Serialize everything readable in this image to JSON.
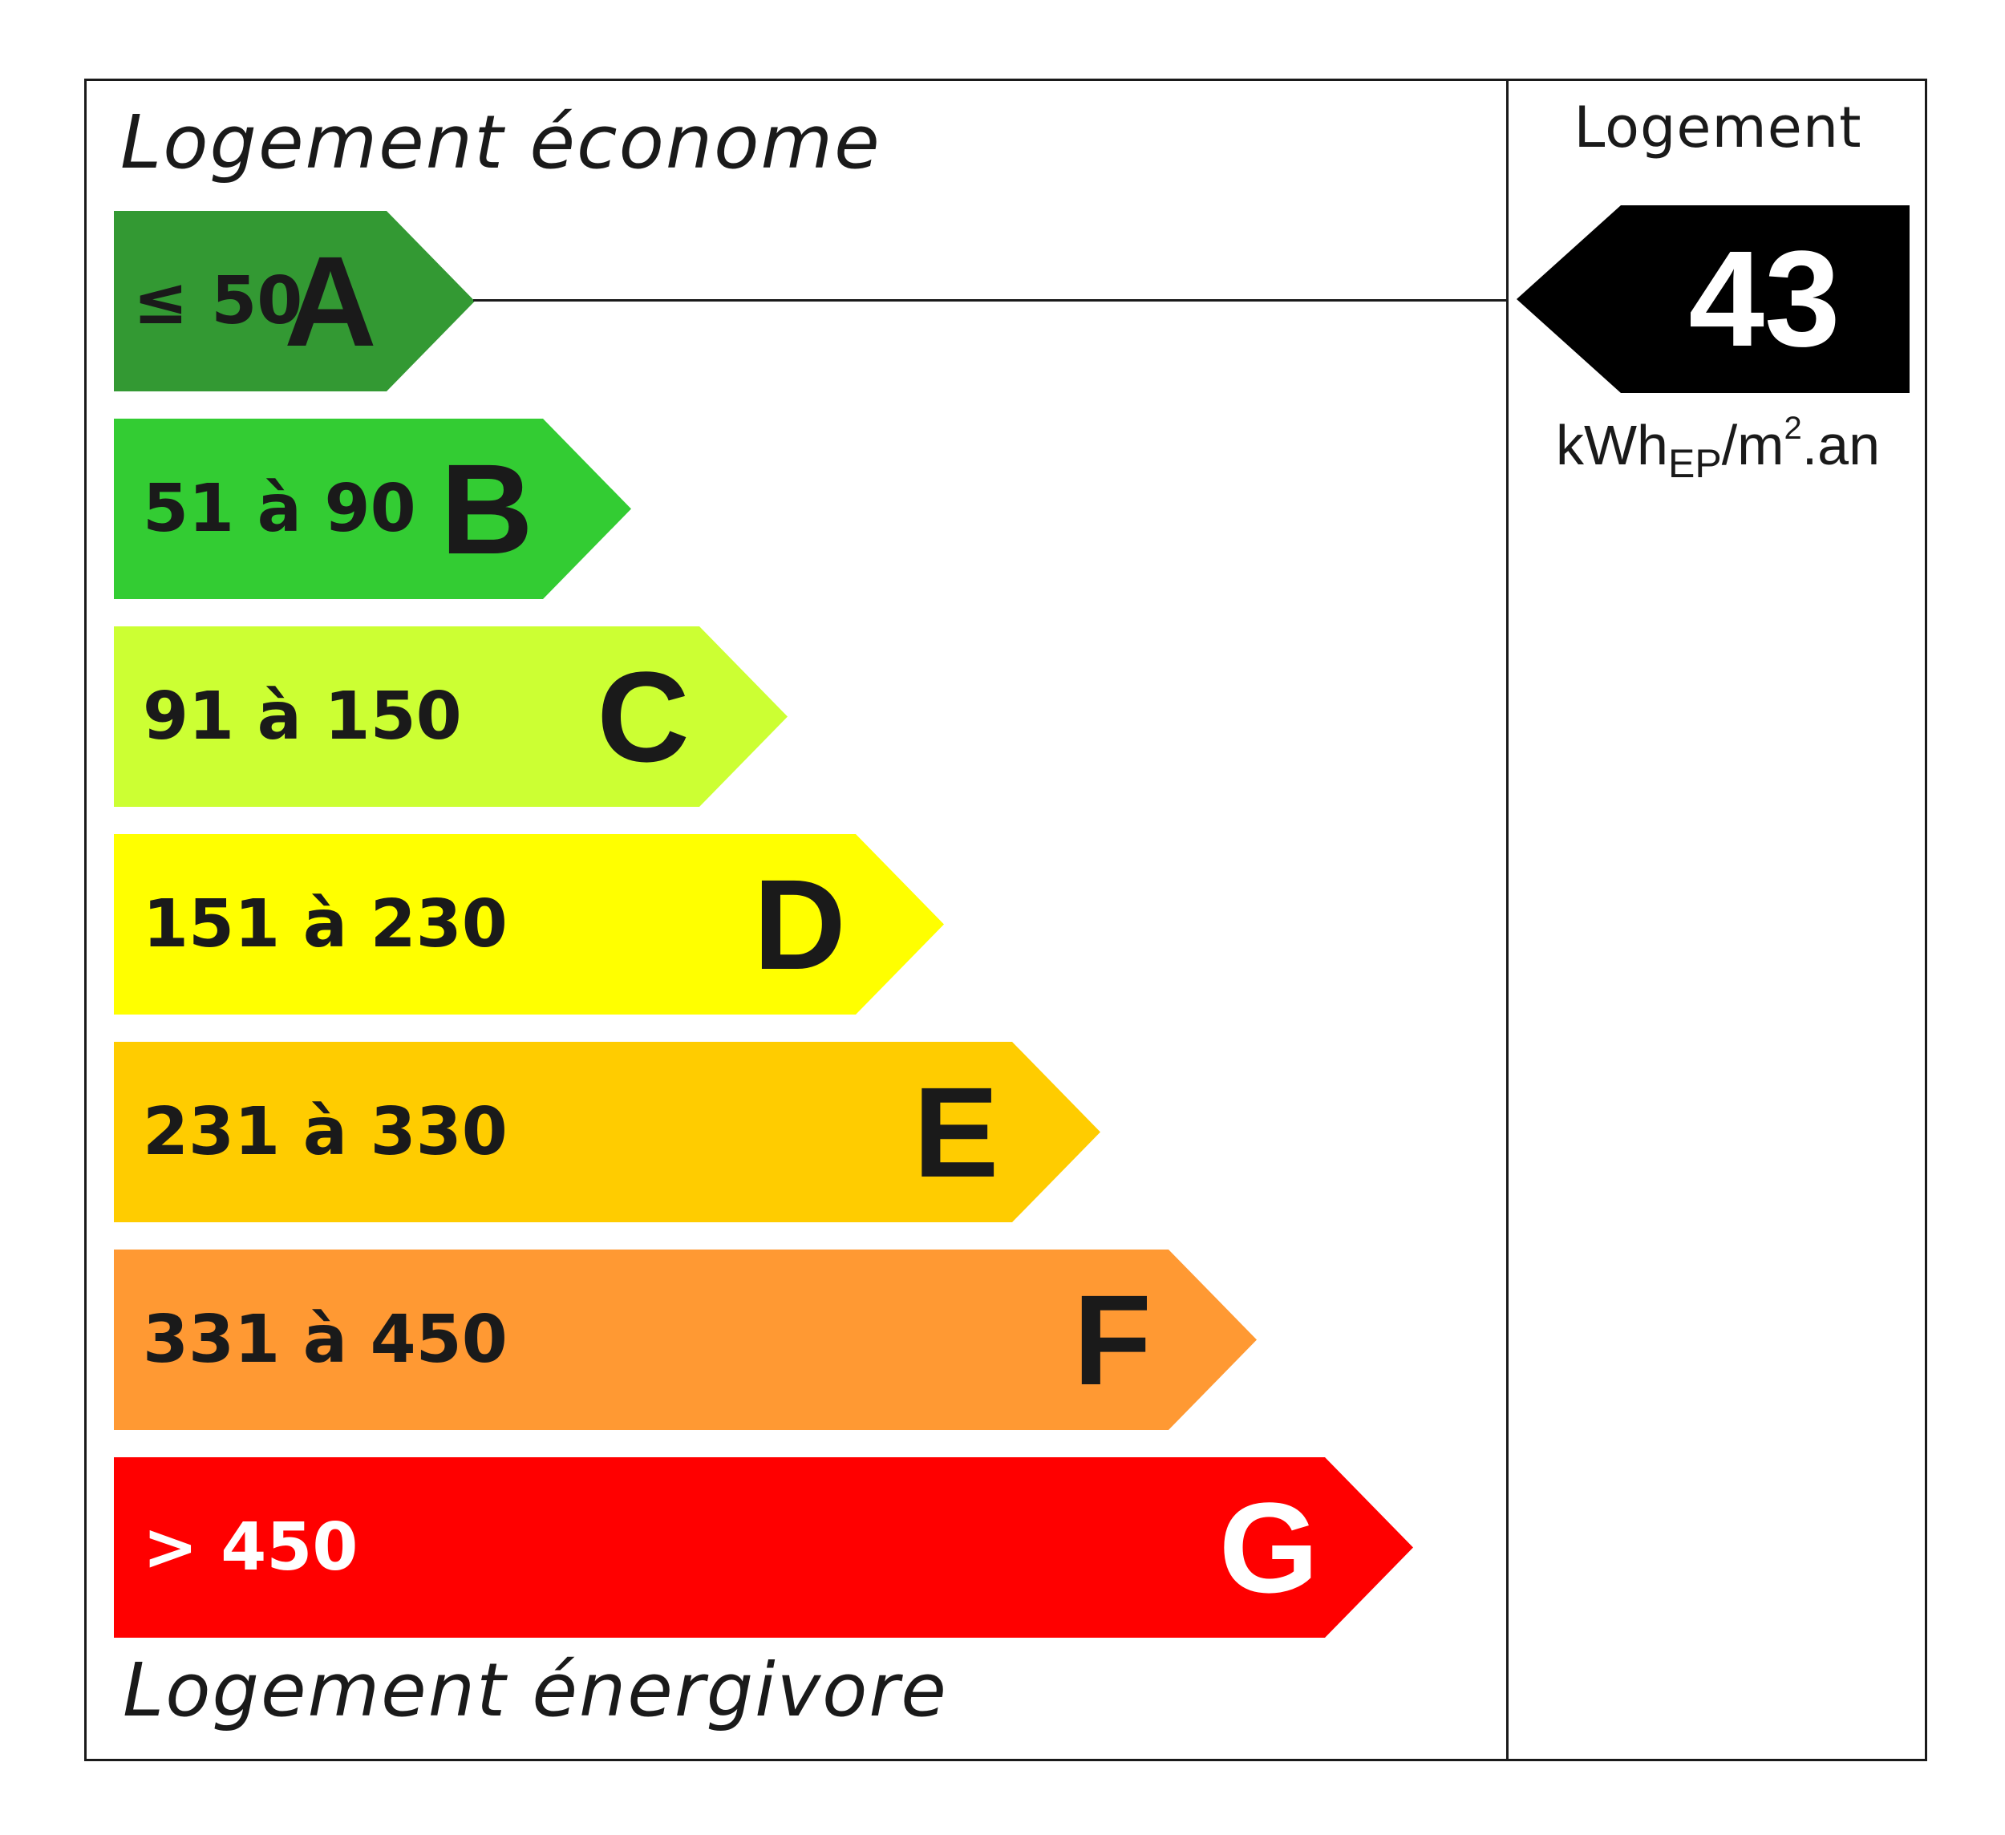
{
  "labels": {
    "top": "Logement économe",
    "bottom": "Logement énergivore",
    "column_title": "Logement"
  },
  "value": "43",
  "unit": {
    "main": "kWh",
    "subscript": "EP",
    "slash_m": "/m",
    "superscript": "2",
    "suffix": ".an"
  },
  "classes": [
    {
      "letter": "A",
      "range": "≤ 50",
      "color": "#339933",
      "text_color": "#1a1a1a"
    },
    {
      "letter": "B",
      "range": "51 à 90",
      "color": "#33cc33",
      "text_color": "#1a1a1a"
    },
    {
      "letter": "C",
      "range": "91 à 150",
      "color": "#ccff33",
      "text_color": "#1a1a1a"
    },
    {
      "letter": "D",
      "range": "151 à 230",
      "color": "#ffff00",
      "text_color": "#1a1a1a"
    },
    {
      "letter": "E",
      "range": "231 à 330",
      "color": "#ffcc00",
      "text_color": "#1a1a1a"
    },
    {
      "letter": "F",
      "range": "331 à 450",
      "color": "#ff9933",
      "text_color": "#1a1a1a"
    },
    {
      "letter": "G",
      "range": "> 450",
      "color": "#ff0000",
      "text_color": "#ffffff"
    }
  ],
  "selected_class": "A"
}
